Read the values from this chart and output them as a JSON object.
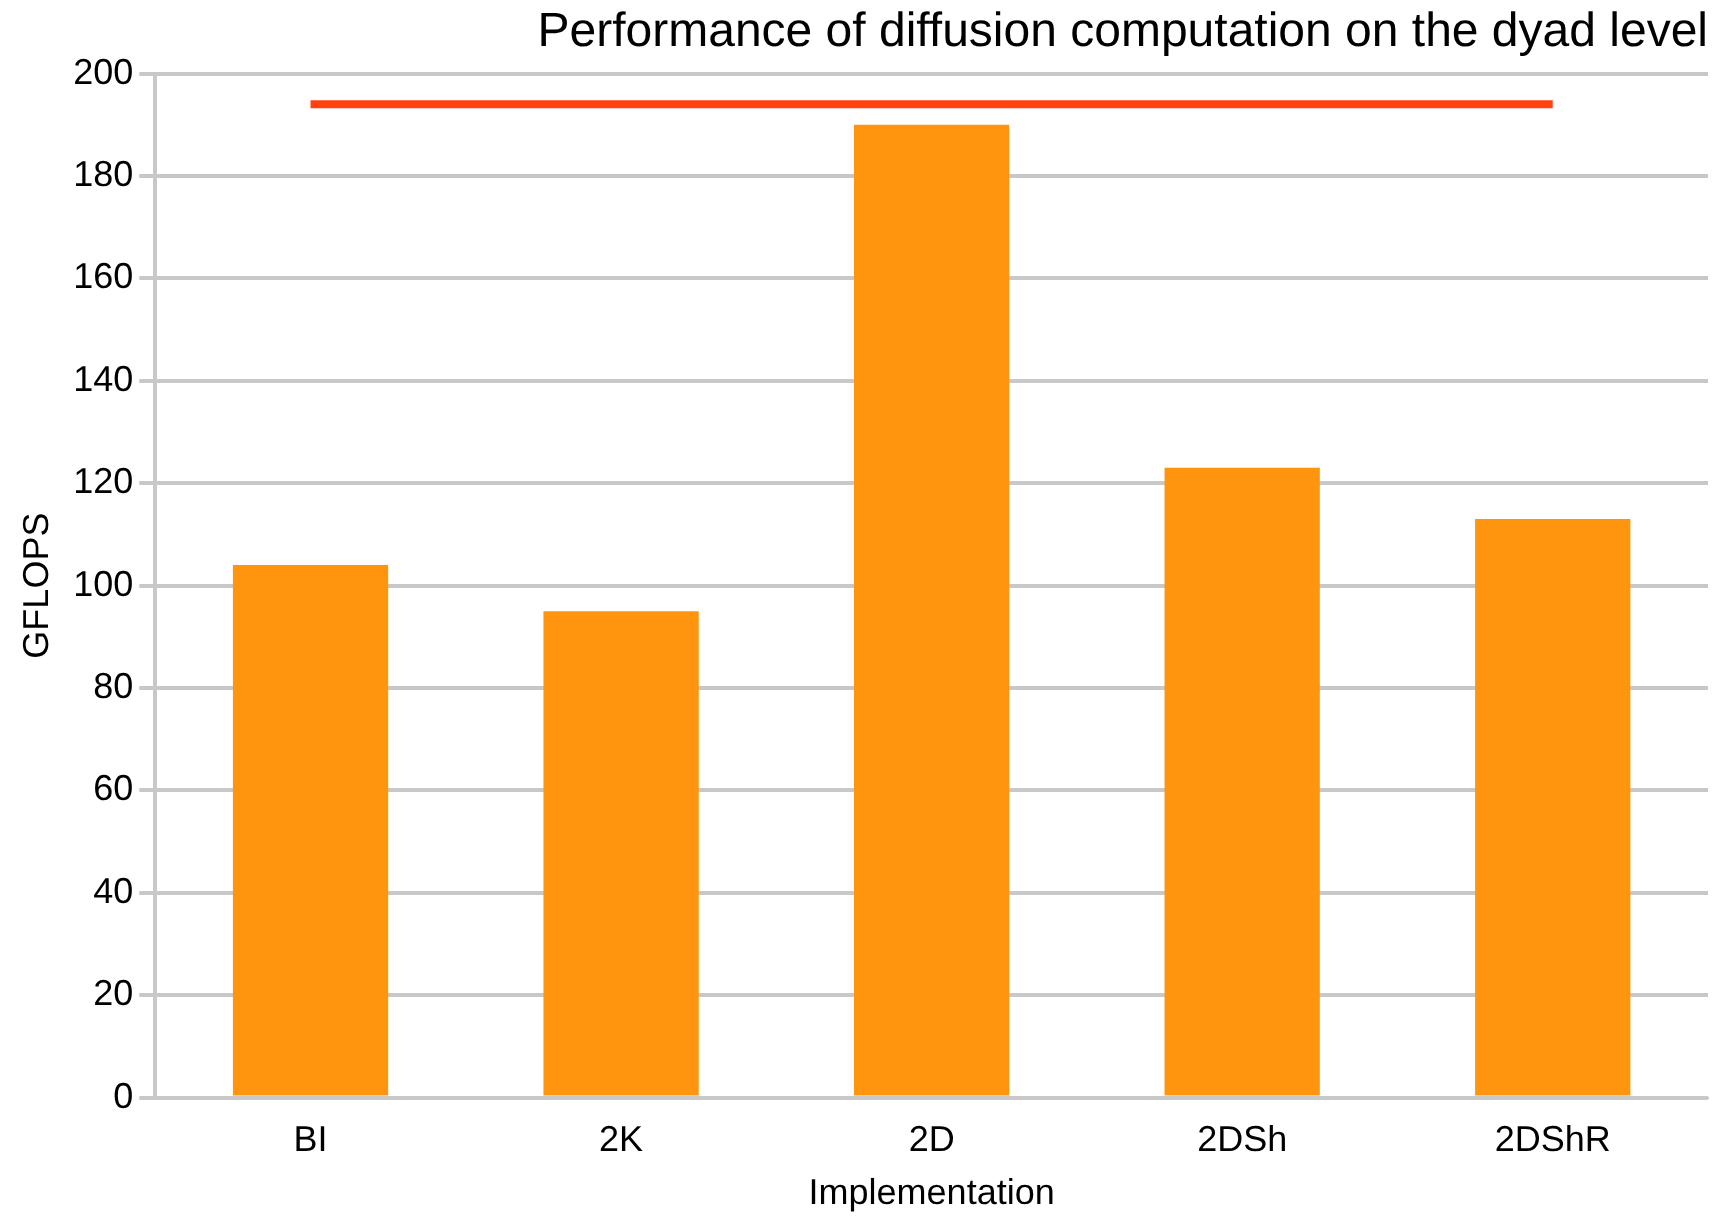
{
  "chart_data": {
    "type": "bar",
    "title": "Performance of diffusion computation on the dyad level",
    "xlabel": "Implementation",
    "ylabel": "GFLOPS",
    "categories": [
      "BI",
      "2K",
      "2D",
      "2DSh",
      "2DShR"
    ],
    "series": [
      {
        "color": "#ff950e",
        "values": [
          104,
          95,
          190,
          123,
          113
        ]
      },
      {
        "type": "line",
        "color": "#ff420e",
        "values": [
          194,
          194,
          194,
          194,
          194
        ],
        "marker": "none",
        "line_style": "solid"
      }
    ],
    "ylim": [
      0,
      200
    ],
    "yticks": [
      0,
      20,
      40,
      60,
      80,
      100,
      120,
      140,
      160,
      180,
      200
    ],
    "grid": "y",
    "legend": false
  }
}
